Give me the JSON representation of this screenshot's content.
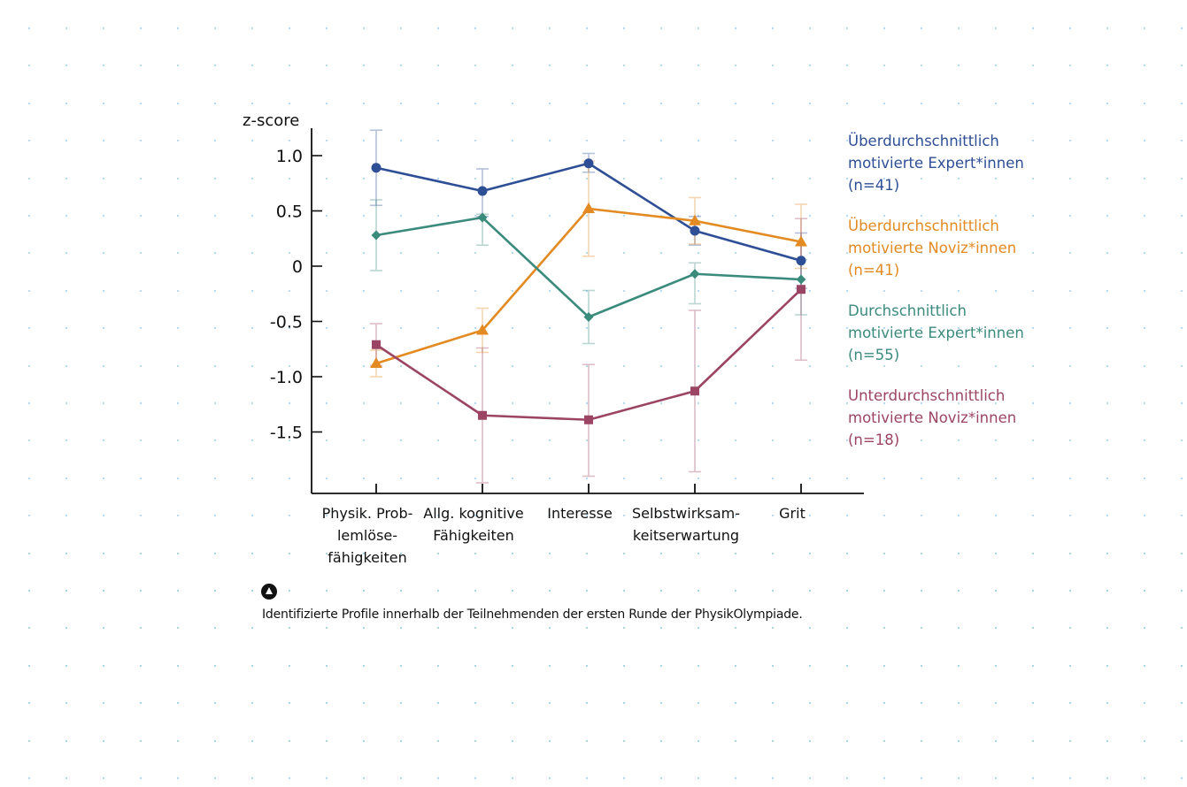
{
  "chart_data": {
    "type": "line",
    "title": "",
    "ylabel": "z-score",
    "xlabel": "",
    "ylim": [
      -2.0,
      1.25
    ],
    "yticks": [
      1.0,
      0.5,
      0,
      -0.5,
      -1.0,
      -1.5
    ],
    "ytick_labels": [
      "1.0",
      "0.5",
      "0",
      "-0.5",
      "-1.0",
      "-1.5"
    ],
    "categories": [
      [
        "Physik. Prob-",
        "lemlöse-",
        "fähigkeiten"
      ],
      [
        "Allg. kognitive",
        "Fähigkeiten"
      ],
      [
        "Interesse"
      ],
      [
        "Selbstwirksam-",
        "keitserwartung"
      ],
      [
        "Grit"
      ]
    ],
    "legend_placement": "right",
    "series": [
      {
        "name": "Überdurchschnittlich motivierte Expert*innen (n=41)",
        "legend_lines": [
          "Überdurchschnittlich",
          "motivierte Expert*innen",
          "(n=41)"
        ],
        "color": "#2e4e96",
        "marker": "circle",
        "values": [
          0.89,
          0.68,
          0.93,
          0.32,
          0.05
        ],
        "err_low": [
          0.55,
          0.45,
          0.85,
          0.19,
          -0.2
        ],
        "err_high": [
          1.23,
          0.88,
          1.02,
          0.45,
          0.3
        ]
      },
      {
        "name": "Überdurchschnittlich motivierte Noviz*innen (n=41)",
        "legend_lines": [
          "Überdurchschnittlich",
          "motivierte Noviz*innen",
          "(n=41)"
        ],
        "color": "#e38a22",
        "marker": "triangle",
        "values": [
          -0.88,
          -0.58,
          0.52,
          0.41,
          0.22
        ],
        "err_low": [
          -1.0,
          -0.78,
          0.09,
          0.2,
          -0.02
        ],
        "err_high": [
          -0.76,
          -0.38,
          0.95,
          0.62,
          0.56
        ]
      },
      {
        "name": "Durchschnittlich motivierte Expert*innen (n=55)",
        "legend_lines": [
          "Durchschnittlich",
          "motivierte Expert*innen",
          "(n=55)"
        ],
        "color": "#3b8b7d",
        "marker": "diamond",
        "values": [
          0.28,
          0.44,
          -0.46,
          -0.07,
          -0.12
        ],
        "err_low": [
          -0.04,
          0.19,
          -0.7,
          -0.34,
          -0.44
        ],
        "err_high": [
          0.6,
          0.47,
          -0.22,
          0.03,
          0.06
        ]
      },
      {
        "name": "Unterdurchschnittlich motivierte Noviz*innen (n=18)",
        "legend_lines": [
          "Unterdurchschnittlich",
          "motivierte Noviz*innen",
          "(n=18)"
        ],
        "color": "#9c4463",
        "marker": "square",
        "values": [
          -0.71,
          -1.35,
          -1.39,
          -1.13,
          -0.21
        ],
        "err_low": [
          -0.9,
          -1.96,
          -1.9,
          -1.86,
          -0.85
        ],
        "err_high": [
          -0.52,
          -0.74,
          -0.89,
          -0.4,
          0.43
        ]
      }
    ]
  },
  "caption": {
    "icon": "triangle-in-circle-icon",
    "text": "Identifizierte Profile innerhalb der Teilnehmenden der ersten Runde der PhysikOlympiade."
  }
}
